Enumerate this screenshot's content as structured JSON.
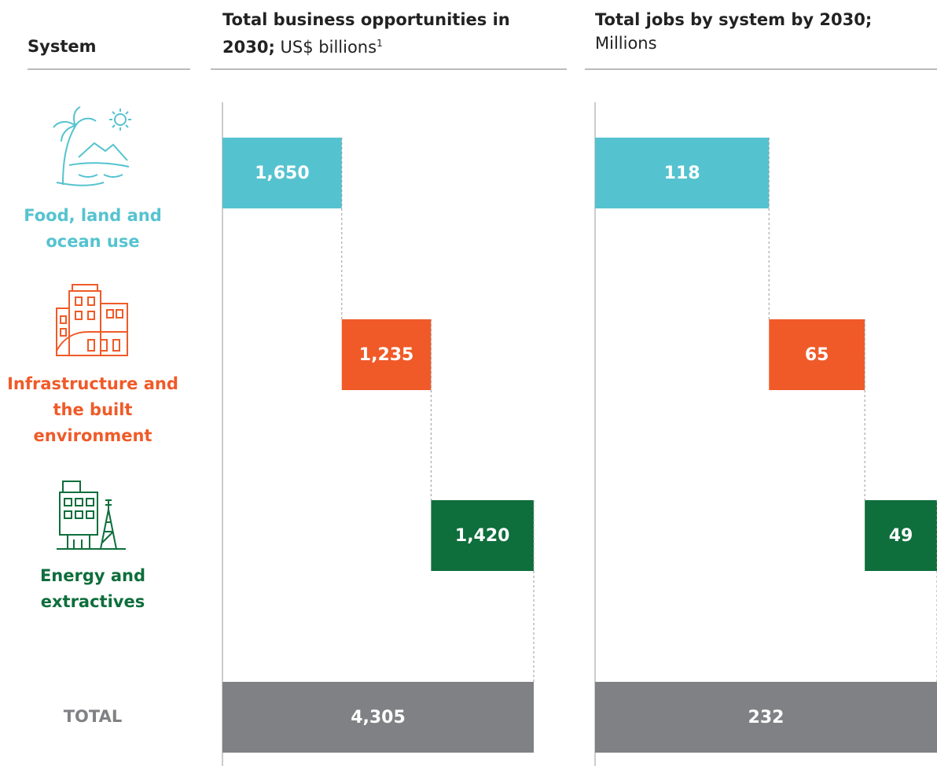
{
  "row_header": "System",
  "categories": [
    "Food, land and ocean use",
    "Infrastructure and the built environment",
    "Energy and extractives"
  ],
  "category_colors": [
    "#55c3cf",
    "#f05a28",
    "#0e6e3c"
  ],
  "total_name": "TOTAL",
  "total_color": "#808184",
  "chart_data": [
    {
      "type": "waterfall",
      "title": "Total business opportunities in 2030;",
      "unit": "US$ billions",
      "footnote": "1",
      "values": [
        1650,
        1235,
        1420
      ],
      "value_labels": [
        "1,650",
        "1,235",
        "1,420"
      ],
      "total": 4305,
      "total_label": "4,305"
    },
    {
      "type": "waterfall",
      "title": "Total jobs by system by 2030;",
      "unit": "Millions",
      "values": [
        118,
        65,
        49
      ],
      "total": 232
    }
  ]
}
